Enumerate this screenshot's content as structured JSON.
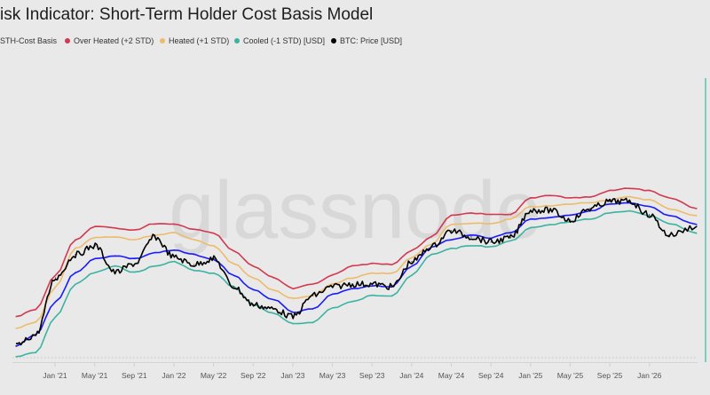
{
  "header": {
    "title": "isk Indicator: Short-Term Holder Cost Basis Model"
  },
  "watermark": "glassnode",
  "colors": {
    "sth": "#1a1aff",
    "over": "#d2384f",
    "heated": "#eebb6a",
    "cooled": "#3cb3a0",
    "price": "#000000",
    "background": "#e9e9e9"
  },
  "chart_data": {
    "type": "line",
    "title": "isk Indicator: Short-Term Holder Cost Basis Model",
    "xlabel": "",
    "ylabel": "",
    "yscale": "log",
    "y_unit": "USD (estimated; no y-axis labels shown)",
    "grid": false,
    "legend_position": "top-left",
    "x_tick_labels": [
      "Jan '21",
      "May '21",
      "Sep '21",
      "Jan '22",
      "May '22",
      "Sep '22",
      "Jan '23",
      "May '23",
      "Sep '23",
      "Jan '24",
      "May '24",
      "Sep '24",
      "Jan '25",
      "May '25",
      "Sep '25",
      "Jan '26"
    ],
    "x": [
      "Sep 2020",
      "Nov 2020",
      "Jan 2021",
      "Mar 2021",
      "May 2021",
      "Jul 2021",
      "Sep 2021",
      "Nov 2021",
      "Jan 2022",
      "Mar 2022",
      "May 2022",
      "Jul 2022",
      "Sep 2022",
      "Nov 2022",
      "Jan 2023",
      "Mar 2023",
      "May 2023",
      "Jul 2023",
      "Sep 2023",
      "Nov 2023",
      "Jan 2024",
      "Mar 2024",
      "May 2024",
      "Jul 2024",
      "Sep 2024",
      "Nov 2024",
      "Jan 2025",
      "Mar 2025",
      "May 2025",
      "Jul 2025",
      "Sep 2025",
      "Nov 2025",
      "Jan 2026",
      "Mar 2026",
      "Apr 2026"
    ],
    "series": [
      {
        "name": "STH-Cost Basis",
        "key": "sth",
        "values": [
          10100,
          12300,
          21800,
          36300,
          46000,
          48600,
          46000,
          51000,
          53300,
          49400,
          45200,
          34600,
          26700,
          22700,
          18100,
          19200,
          24800,
          27200,
          28900,
          28300,
          40400,
          56800,
          64100,
          69300,
          66200,
          72700,
          91500,
          94300,
          98800,
          105000,
          119000,
          121000,
          113600,
          97300,
          83400
        ]
      },
      {
        "name": "Over Heated (+2 STD)",
        "key": "over",
        "values": [
          16800,
          19200,
          34600,
          64100,
          80800,
          78400,
          76000,
          84700,
          83400,
          77200,
          71600,
          52500,
          40400,
          33000,
          27400,
          29600,
          34600,
          41000,
          42200,
          41600,
          53300,
          67200,
          97300,
          102000,
          98800,
          98800,
          132400,
          139000,
          132400,
          134500,
          150000,
          157000,
          150000,
          132400,
          110000
        ]
      },
      {
        "name": "Heated (+1 STD)",
        "key": "heated",
        "values": [
          13700,
          15300,
          28300,
          55000,
          66200,
          67200,
          64100,
          69300,
          72700,
          64100,
          57700,
          42200,
          33000,
          26700,
          23000,
          24300,
          29600,
          33000,
          35700,
          35700,
          47100,
          59600,
          83400,
          84700,
          84700,
          91500,
          113600,
          115000,
          119000,
          122500,
          128400,
          134500,
          128400,
          110000,
          97300
        ]
      },
      {
        "name": "Cooled (-1 STD) [USD]",
        "key": "cooled",
        "values": [
          8400,
          9000,
          16800,
          29600,
          36300,
          40400,
          36300,
          40400,
          43700,
          37500,
          35700,
          28300,
          20700,
          17800,
          14800,
          15300,
          19600,
          21800,
          24300,
          24300,
          34600,
          49400,
          55000,
          57700,
          56800,
          62600,
          78400,
          83400,
          87300,
          91500,
          102000,
          105000,
          97300,
          84700,
          71600
        ]
      },
      {
        "name": "BTC: Price [USD]",
        "key": "price",
        "values": [
          10100,
          12300,
          33000,
          49400,
          57700,
          36300,
          42200,
          67200,
          47100,
          41600,
          46000,
          28300,
          20700,
          19200,
          16800,
          24300,
          28300,
          29600,
          29600,
          28300,
          43700,
          56800,
          74800,
          67200,
          61500,
          66200,
          107000,
          107000,
          90000,
          110000,
          124500,
          124500,
          98800,
          69300,
          80800
        ]
      }
    ]
  }
}
